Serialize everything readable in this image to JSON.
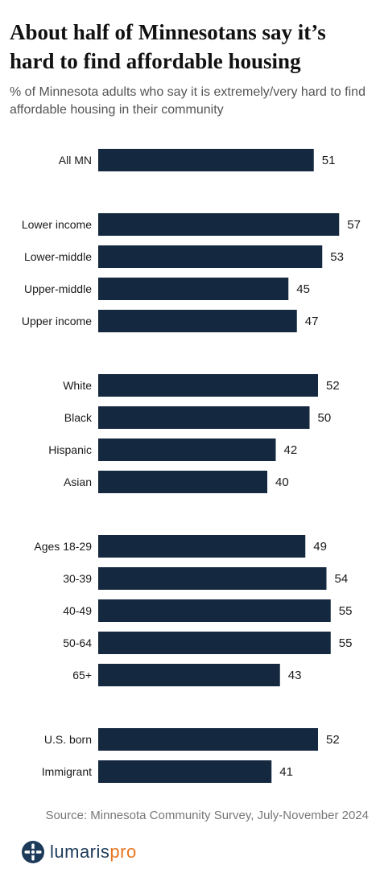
{
  "chart_data": {
    "type": "bar",
    "orientation": "horizontal",
    "title": "About half of Minnesotans say it’s hard to find affordable housing",
    "subtitle": "% of Minnesota adults who say it is extremely/very hard to find affordable housing in their community",
    "groups": [
      {
        "categories": [
          "All MN"
        ],
        "values": [
          51
        ]
      },
      {
        "categories": [
          "Lower income",
          "Lower-middle",
          "Upper-middle",
          "Upper income"
        ],
        "values": [
          57,
          53,
          45,
          47
        ]
      },
      {
        "categories": [
          "White",
          "Black",
          "Hispanic",
          "Asian"
        ],
        "values": [
          52,
          50,
          42,
          40
        ]
      },
      {
        "categories": [
          "Ages 18-29",
          "30-39",
          "40-49",
          "50-64",
          "65+"
        ],
        "values": [
          49,
          54,
          55,
          55,
          43
        ]
      },
      {
        "categories": [
          "U.S. born",
          "Immigrant"
        ],
        "values": [
          52,
          41
        ]
      }
    ],
    "bar_color": "#14283f",
    "grid": false,
    "legend": "none"
  },
  "source": "Source: Minnesota Community Survey, July-November 2024",
  "logo": {
    "text_primary": "lumaris",
    "text_accent": "pro",
    "icon": "lumaris-logo-icon",
    "color_primary": "#1d3a5a",
    "color_accent": "#e8741e"
  }
}
